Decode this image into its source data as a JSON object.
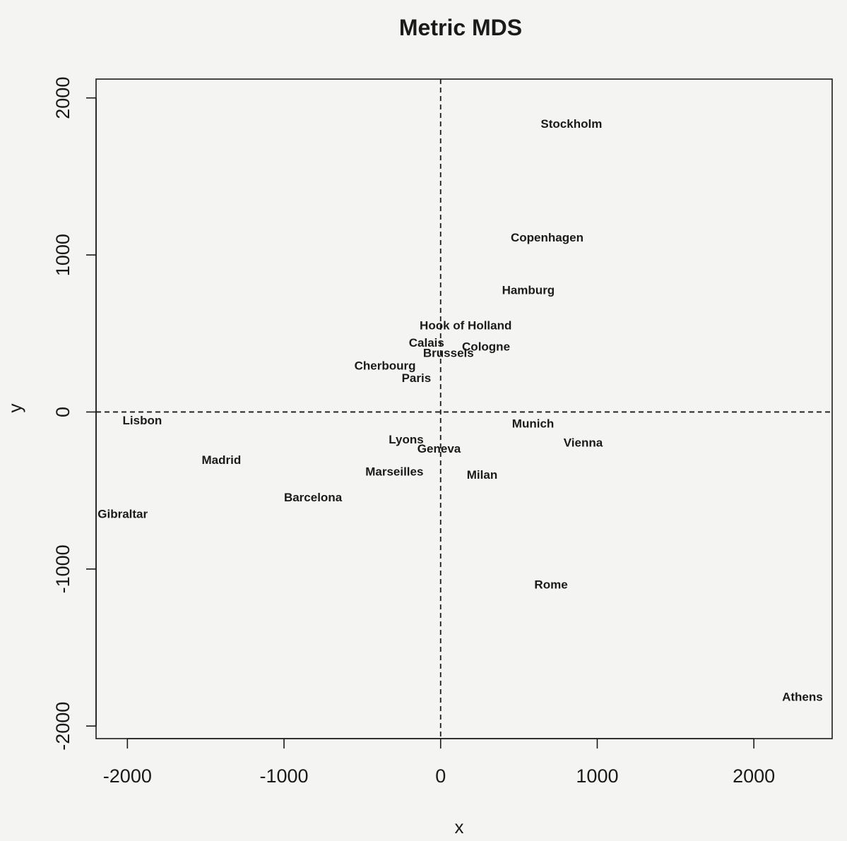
{
  "chart_data": {
    "type": "scatter",
    "title": "Metric MDS",
    "xlabel": "x",
    "ylabel": "y",
    "xlim": [
      -2200,
      2500
    ],
    "ylim": [
      -2080,
      2120
    ],
    "x_ticks": [
      -2000,
      -1000,
      0,
      1000,
      2000
    ],
    "y_ticks": [
      -2000,
      -1000,
      0,
      1000,
      2000
    ],
    "reference_lines": {
      "x": 0,
      "y": 0,
      "style": "dashed"
    },
    "grid": false,
    "points": [
      {
        "label": "Stockholm",
        "x": 835,
        "y": 1835
      },
      {
        "label": "Copenhagen",
        "x": 680,
        "y": 1110
      },
      {
        "label": "Hamburg",
        "x": 560,
        "y": 775
      },
      {
        "label": "Hook of Holland",
        "x": 160,
        "y": 550
      },
      {
        "label": "Calais",
        "x": -90,
        "y": 440
      },
      {
        "label": "Cologne",
        "x": 290,
        "y": 415
      },
      {
        "label": "Brussels",
        "x": 50,
        "y": 375
      },
      {
        "label": "Cherbourg",
        "x": -355,
        "y": 295
      },
      {
        "label": "Paris",
        "x": -155,
        "y": 215
      },
      {
        "label": "Lisbon",
        "x": -1905,
        "y": -55
      },
      {
        "label": "Munich",
        "x": 590,
        "y": -75
      },
      {
        "label": "Lyons",
        "x": -220,
        "y": -175
      },
      {
        "label": "Vienna",
        "x": 910,
        "y": -195
      },
      {
        "label": "Geneva",
        "x": -10,
        "y": -235
      },
      {
        "label": "Madrid",
        "x": -1400,
        "y": -305
      },
      {
        "label": "Marseilles",
        "x": -295,
        "y": -380
      },
      {
        "label": "Milan",
        "x": 265,
        "y": -400
      },
      {
        "label": "Barcelona",
        "x": -815,
        "y": -545
      },
      {
        "label": "Gibraltar",
        "x": -2030,
        "y": -650
      },
      {
        "label": "Rome",
        "x": 705,
        "y": -1100
      },
      {
        "label": "Athens",
        "x": 2310,
        "y": -1815
      }
    ]
  }
}
